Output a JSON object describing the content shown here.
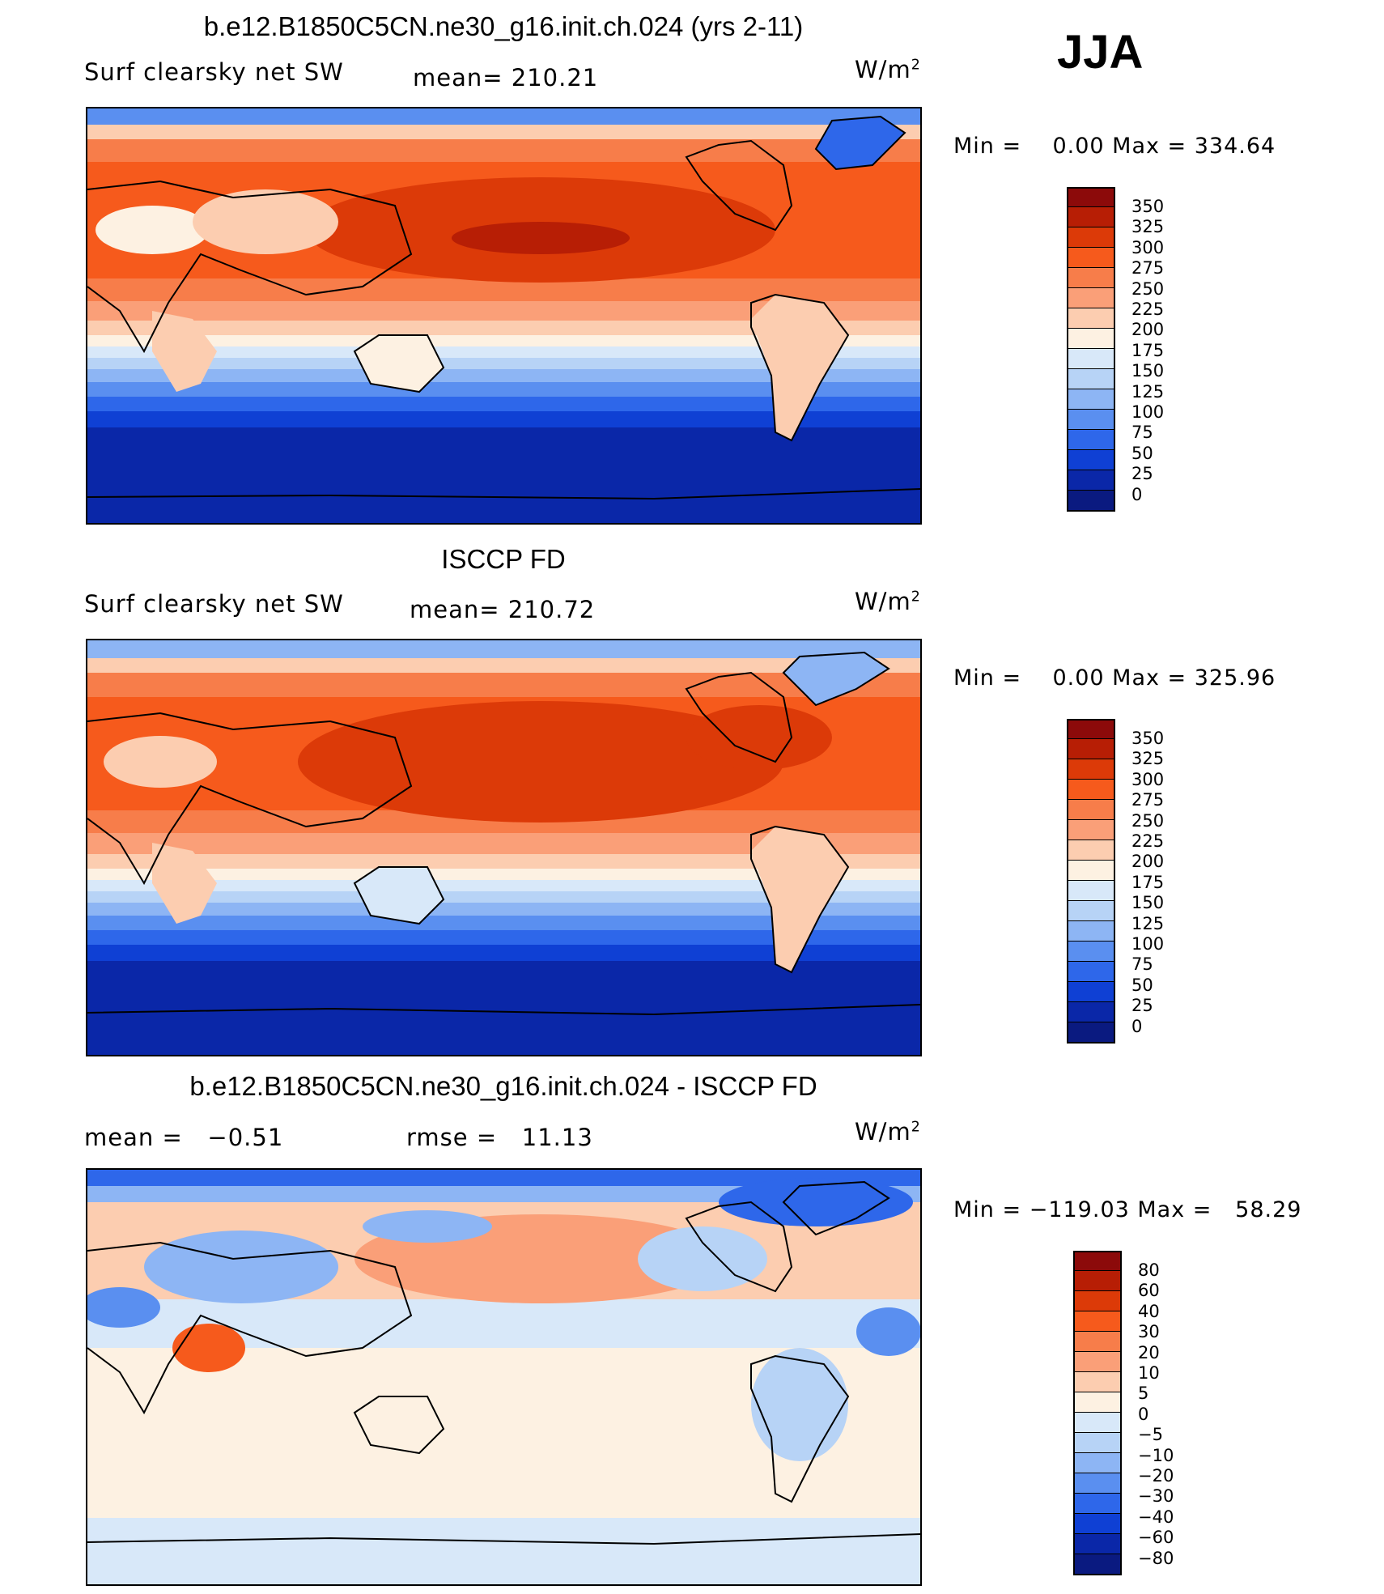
{
  "season": "JJA",
  "unit_base": "W/m",
  "unit_exp": "2",
  "panels": [
    {
      "title": "b.e12.B1850C5CN.ne30_g16.init.ch.024 (yrs 2-11)",
      "variable": "Surf clearsky net SW",
      "stat_text": "mean= 210.21",
      "minmax": "Min =    0.00 Max = 334.64"
    },
    {
      "title": "ISCCP FD",
      "variable": "Surf clearsky net SW",
      "stat_text": "mean= 210.72",
      "minmax": "Min =    0.00 Max = 325.96"
    },
    {
      "title": "b.e12.B1850C5CN.ne30_g16.init.ch.024 - ISCCP FD",
      "mean_text": "mean =   −0.51",
      "rmse_text": "rmse =   11.13",
      "minmax": "Min = −119.03 Max =   58.29"
    }
  ],
  "chart_data": [
    {
      "type": "heatmap",
      "title": "b.e12.B1850C5CN.ne30_g16.init.ch.024 (yrs 2-11)",
      "field": "Surf clearsky net SW",
      "units": "W/m2",
      "mean": 210.21,
      "min": 0.0,
      "max": 334.64,
      "colorbar_levels": [
        "350",
        "325",
        "300",
        "275",
        "250",
        "225",
        "200",
        "175",
        "150",
        "125",
        "100",
        "75",
        "50",
        "25",
        "0"
      ],
      "colors": [
        "#8c0a0a",
        "#b71e05",
        "#dc3a08",
        "#f65a1c",
        "#f77d4a",
        "#fa9f78",
        "#fccdb0",
        "#fdf1e2",
        "#d8e8f9",
        "#b7d3f6",
        "#8db5f4",
        "#5a8ff0",
        "#2e67ea",
        "#0f40d4",
        "#0a27a8",
        "#0a1a80"
      ]
    },
    {
      "type": "heatmap",
      "title": "ISCCP FD",
      "field": "Surf clearsky net SW",
      "units": "W/m2",
      "mean": 210.72,
      "min": 0.0,
      "max": 325.96,
      "colorbar_levels": [
        "350",
        "325",
        "300",
        "275",
        "250",
        "225",
        "200",
        "175",
        "150",
        "125",
        "100",
        "75",
        "50",
        "25",
        "0"
      ],
      "colors": [
        "#8c0a0a",
        "#b71e05",
        "#dc3a08",
        "#f65a1c",
        "#f77d4a",
        "#fa9f78",
        "#fccdb0",
        "#fdf1e2",
        "#d8e8f9",
        "#b7d3f6",
        "#8db5f4",
        "#5a8ff0",
        "#2e67ea",
        "#0f40d4",
        "#0a27a8",
        "#0a1a80"
      ]
    },
    {
      "type": "heatmap",
      "title": "b.e12.B1850C5CN.ne30_g16.init.ch.024 - ISCCP FD",
      "units": "W/m2",
      "mean": -0.51,
      "rmse": 11.13,
      "min": -119.03,
      "max": 58.29,
      "colorbar_levels": [
        "80",
        "60",
        "40",
        "30",
        "20",
        "10",
        "5",
        "0",
        "−5",
        "−10",
        "−20",
        "−30",
        "−40",
        "−60",
        "−80"
      ],
      "colors": [
        "#8c0a0a",
        "#b71e05",
        "#dc3a08",
        "#f65a1c",
        "#f77d4a",
        "#fa9f78",
        "#fccdb0",
        "#fdf1e2",
        "#d8e8f9",
        "#b7d3f6",
        "#8db5f4",
        "#5a8ff0",
        "#2e67ea",
        "#0f40d4",
        "#0a27a8",
        "#0a1a80"
      ]
    }
  ]
}
